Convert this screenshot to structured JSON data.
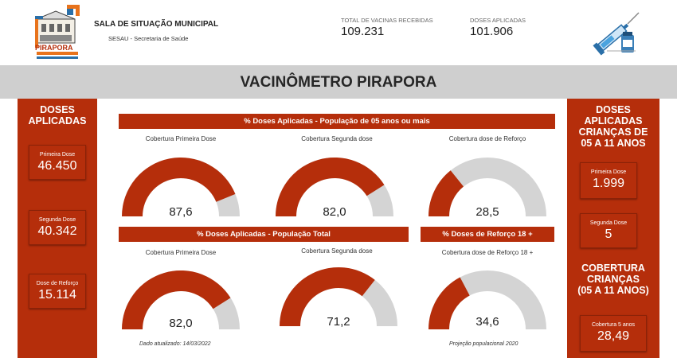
{
  "header": {
    "logo_text": "PIRAPORA",
    "title": "SALA DE SITUAÇÃO MUNICIPAL",
    "subtitle": "SESAU - Secretaria de Saúde",
    "kpis": [
      {
        "label": "TOTAL DE VACINAS RECEBIDAS",
        "value": "109.231"
      },
      {
        "label": "DOSES APLICADAS",
        "value": "101.906"
      }
    ]
  },
  "page_title": "VACINÔMETRO PIRAPORA",
  "left_panel": {
    "heading": [
      "DOSES",
      "APLICADAS"
    ],
    "cards": [
      {
        "label": "Primeira Dose",
        "value": "46.450"
      },
      {
        "label": "Segunda Dose",
        "value": "40.342"
      },
      {
        "label": "Dose de Reforço",
        "value": "15.114"
      }
    ]
  },
  "right_panel": {
    "heading": [
      "DOSES",
      "APLICADAS",
      "CRIANÇAS DE",
      "05 A 11 ANOS"
    ],
    "cards": [
      {
        "label": "Primeira Dose",
        "value": "1.999"
      },
      {
        "label": "Segunda Dose",
        "value": "5"
      }
    ],
    "coverage_heading": [
      "COBERTURA",
      "CRIANÇAS",
      "(05 A 11 ANOS)"
    ],
    "coverage_card": {
      "label": "Cobertura 5 anos",
      "value": "28,49"
    }
  },
  "sections": {
    "pop5": "% Doses Aplicadas - População de 05 anos ou mais",
    "total": "% Doses Aplicadas - População Total",
    "booster18": "% Doses de Reforço 18 +"
  },
  "colors": {
    "accent": "#b52e0b",
    "track": "#d4d4d4",
    "band": "#cfcfcf"
  },
  "chart_data": [
    {
      "type": "gauge",
      "title": "Cobertura Primeira Dose",
      "value": 87.6,
      "display": "87,6",
      "ylim": [
        0,
        100
      ]
    },
    {
      "type": "gauge",
      "title": "Cobertura Segunda dose",
      "value": 82.0,
      "display": "82,0",
      "ylim": [
        0,
        100
      ]
    },
    {
      "type": "gauge",
      "title": "Cobertura dose de Reforço",
      "value": 28.5,
      "display": "28,5",
      "ylim": [
        0,
        100
      ]
    },
    {
      "type": "gauge",
      "title": "Cobertura Primeira Dose",
      "value": 82.0,
      "display": "82,0",
      "ylim": [
        0,
        100
      ]
    },
    {
      "type": "gauge",
      "title": "Cobertura Segunda dose",
      "value": 71.2,
      "display": "71,2",
      "ylim": [
        0,
        100
      ]
    },
    {
      "type": "gauge",
      "title": "Cobertura dose de Reforço 18 +",
      "value": 34.6,
      "display": "34,6",
      "ylim": [
        0,
        100
      ]
    }
  ],
  "footnotes": {
    "updated": "Dado atualizado: 14/03/2022",
    "projection": "Projeção populacional 2020"
  }
}
